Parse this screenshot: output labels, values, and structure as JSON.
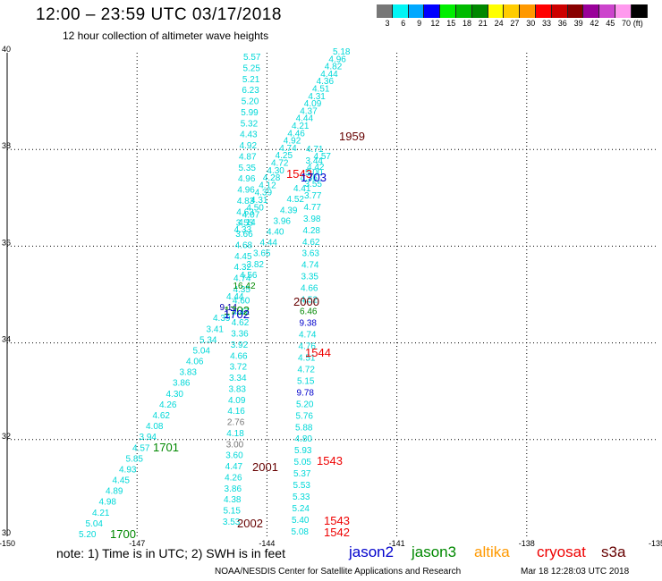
{
  "title": "12:00 – 23:59 UTC 03/17/2018",
  "subtitle": "12 hour collection of altimeter wave heights",
  "legend": {
    "labels": [
      "3",
      "6",
      "9",
      "12",
      "15",
      "18",
      "21",
      "24",
      "27",
      "30",
      "33",
      "36",
      "39",
      "42",
      "45",
      "70",
      "(ft)"
    ],
    "colors": [
      "#777777",
      "#00f5f5",
      "#00a8ff",
      "#0000ff",
      "#00ee00",
      "#00bb00",
      "#008800",
      "#ffff00",
      "#ffcc00",
      "#ff9900",
      "#ff0000",
      "#cc0000",
      "#880000",
      "#990099",
      "#cc44cc",
      "#ff99ee",
      "#000000"
    ]
  },
  "axes": {
    "x_ticks": [
      "-150",
      "-147",
      "-144",
      "-141",
      "-138",
      "-135"
    ],
    "y_ticks": [
      "40",
      "38",
      "36",
      "34",
      "32",
      "30"
    ]
  },
  "note": "note:  1) Time is in UTC;  2) SWH is in feet",
  "satellites": [
    {
      "name": "jason2",
      "color": "#0000cc"
    },
    {
      "name": "jason3",
      "color": "#008800"
    },
    {
      "name": "altika",
      "color": "#ff9900"
    },
    {
      "name": "cryosat",
      "color": "#ee0000"
    },
    {
      "name": "s3a",
      "color": "#660000"
    }
  ],
  "credit": "NOAA/NESDIS Center for Satellite Applications and Research",
  "timestamp": "Mar 18 12:28:03 UTC 2018",
  "track_times": [
    {
      "text": "1959",
      "color": "#660000"
    },
    {
      "text": "1543",
      "color": "#ee0000"
    },
    {
      "text": "1703",
      "color": "#0000cc"
    },
    {
      "text": "2000",
      "color": "#660000"
    },
    {
      "text": "1702",
      "color": "#008800"
    },
    {
      "text": "1702",
      "color": "#0000cc"
    },
    {
      "text": "1544",
      "color": "#ee0000"
    },
    {
      "text": "1701",
      "color": "#008800"
    },
    {
      "text": "1543",
      "color": "#ee0000"
    },
    {
      "text": "2001",
      "color": "#660000"
    },
    {
      "text": "2002",
      "color": "#660000"
    },
    {
      "text": "1543",
      "color": "#ee0000"
    },
    {
      "text": "1542",
      "color": "#ee0000"
    },
    {
      "text": "1700",
      "color": "#008800"
    }
  ],
  "center_col_values": [
    "5.57",
    "5.25",
    "5.21",
    "6.23",
    "5.20",
    "5.99",
    "5.32",
    "4.43",
    "4.92",
    "4.87",
    "5.35",
    "4.96",
    "4.96",
    "4.83",
    "4.63",
    "3.55",
    "3.66",
    "4.68",
    "4.45",
    "4.32",
    "4.74",
    "4.35",
    "4.60",
    "4.47",
    "4.62",
    "3.36",
    "3.92",
    "4.66",
    "3.72",
    "3.34",
    "3.83",
    "4.09",
    "4.16",
    "2.76",
    "4.18",
    "3.00",
    "3.60",
    "4.47",
    "4.26",
    "3.86",
    "4.38",
    "5.15",
    "3.53"
  ],
  "right_col_values": [
    "4.71",
    "3.44",
    "5.00",
    "3.55",
    "3.77",
    "4.77",
    "3.98",
    "4.28",
    "4.62",
    "3.63",
    "4.74",
    "3.35",
    "4.66",
    "4.52",
    "6.46",
    "9.38",
    "4.74",
    "4.76",
    "4.51",
    "4.72",
    "5.15",
    "9.78",
    "5.20",
    "5.76",
    "5.88",
    "4.80",
    "5.93",
    "5.05",
    "5.37",
    "5.53",
    "5.33",
    "5.24",
    "5.40",
    "5.08"
  ],
  "track_a_values": [
    "5.20",
    "5.04",
    "4.21",
    "4.98",
    "4.89",
    "4.45",
    "4.93",
    "5.85",
    "4.57",
    "3.94",
    "4.08",
    "4.62",
    "4.26",
    "4.30",
    "3.86",
    "3.83",
    "4.06",
    "5.04",
    "5.34",
    "3.41",
    "4.39",
    "9.14",
    "4.44",
    "16.42",
    "4.56",
    "3.82",
    "3.65",
    "4.44",
    "4.40",
    "3.96",
    "4.39",
    "4.52",
    "4.41",
    "4.36",
    "4.42",
    "4.57"
  ],
  "track_b_values": [
    "5.18",
    "4.96",
    "4.82",
    "4.44",
    "4.36",
    "4.51",
    "4.31",
    "4.09",
    "4.37",
    "4.44",
    "4.21",
    "4.46",
    "4.92",
    "4.74",
    "4.25",
    "4.72",
    "4.30",
    "4.28",
    "4.12",
    "4.39",
    "4.31",
    "4.50",
    "4.07",
    "4.14",
    "4.33"
  ],
  "value_overrides": {
    "9.14": "#0000aa",
    "16.42": "#008800",
    "9.38": "#0000cc",
    "9.78": "#0000cc",
    "6.46": "#008800",
    "2.76": "#777777",
    "3.00": "#777777"
  }
}
